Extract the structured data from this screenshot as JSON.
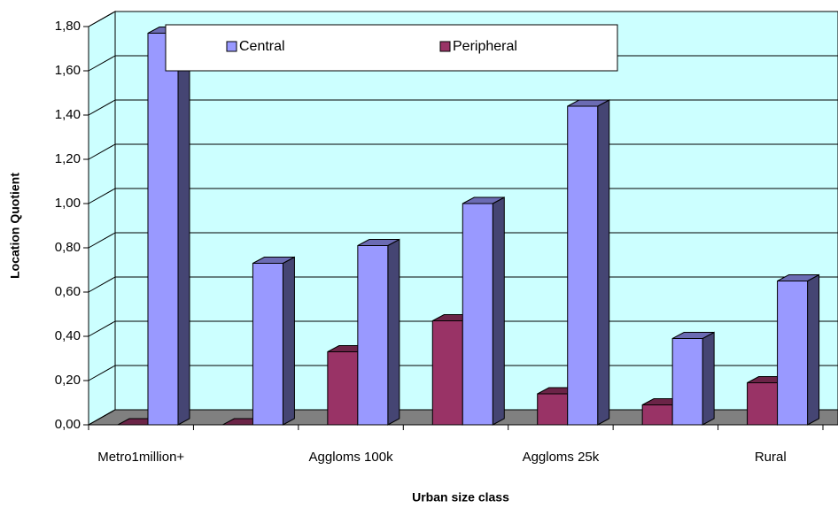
{
  "chart_data": {
    "type": "bar3d",
    "x_label": "Urban size class",
    "y_label": "Location Quotient",
    "categories": [
      "Metro1million+",
      null,
      "Aggloms 100k",
      null,
      "Aggloms 25k",
      null,
      "Rural"
    ],
    "series": [
      {
        "name": "Central",
        "color": "#9999ff",
        "values": [
          1.77,
          0.73,
          0.81,
          1.0,
          1.44,
          0.39,
          0.65
        ]
      },
      {
        "name": "Peripheral",
        "color": "#993366",
        "values": [
          0,
          0,
          0.33,
          0.47,
          0.14,
          0.09,
          0.19
        ]
      }
    ],
    "ylim": [
      0,
      1.8
    ],
    "yticks": [
      {
        "value": 0,
        "label": "0,00"
      },
      {
        "value": 0.2,
        "label": "0,20"
      },
      {
        "value": 0.4,
        "label": "0,40"
      },
      {
        "value": 0.6,
        "label": "0,60"
      },
      {
        "value": 0.8,
        "label": "0,80"
      },
      {
        "value": 1.0,
        "label": "1,00"
      },
      {
        "value": 1.2,
        "label": "1,20"
      },
      {
        "value": 1.4,
        "label": "1,40"
      },
      {
        "value": 1.6,
        "label": "1,60"
      },
      {
        "value": 1.8,
        "label": "1,80"
      }
    ],
    "grid": true
  }
}
